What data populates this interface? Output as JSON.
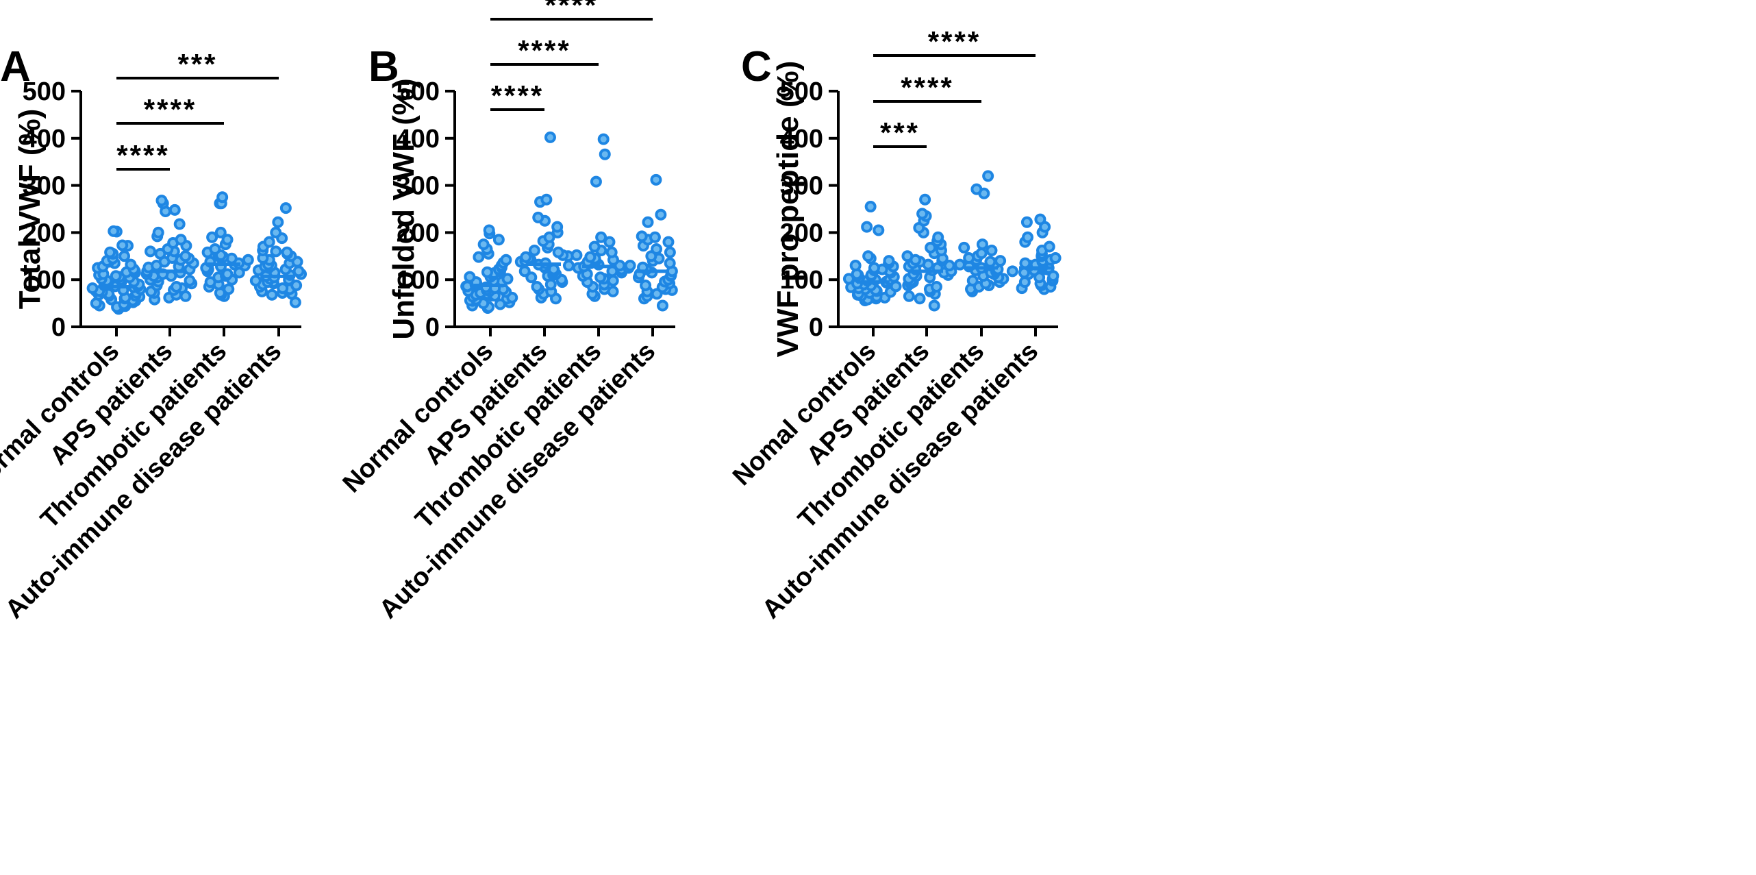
{
  "colors": {
    "point_fill": "#6ab8f0",
    "point_stroke": "#1e86e3",
    "mean_line": "#1e86e3",
    "axis": "#000000"
  },
  "chart_data": [
    {
      "type": "scatter",
      "panel": "A",
      "ylabel": "Total VWF (%)",
      "ylim": [
        0,
        500
      ],
      "yticks": [
        0,
        100,
        200,
        300,
        400,
        500
      ],
      "ytick_labels": [
        "0",
        "100",
        "200",
        "300",
        "400",
        "500"
      ],
      "categories": [
        "Normal controls",
        "APS patients",
        "Thrombotic patients",
        "Auto-immune disease patients"
      ],
      "means": [
        85,
        118,
        133,
        107
      ],
      "series": [
        {
          "name": "Normal controls",
          "values": [
            202,
            203,
            172,
            173,
            155,
            158,
            150,
            145,
            140,
            138,
            135,
            132,
            128,
            125,
            122,
            118,
            115,
            112,
            110,
            108,
            105,
            102,
            100,
            98,
            96,
            94,
            92,
            90,
            88,
            86,
            84,
            82,
            80,
            78,
            76,
            74,
            72,
            70,
            68,
            66,
            64,
            62,
            60,
            58,
            55,
            52,
            50,
            48,
            45,
            42,
            40,
            38,
            44,
            56,
            66,
            76,
            86,
            96,
            106,
            116
          ]
        },
        {
          "name": "APS patients",
          "values": [
            268,
            262,
            248,
            245,
            218,
            200,
            192,
            185,
            178,
            172,
            165,
            160,
            155,
            150,
            146,
            142,
            138,
            135,
            130,
            126,
            122,
            118,
            115,
            112,
            108,
            105,
            100,
            96,
            92,
            88,
            85,
            82,
            78,
            75,
            72,
            68,
            65,
            62,
            58,
            112,
            128,
            145,
            160,
            98,
            108
          ]
        },
        {
          "name": "Thrombotic patients",
          "values": [
            275,
            262,
            262,
            200,
            190,
            185,
            175,
            165,
            158,
            152,
            148,
            145,
            142,
            138,
            135,
            132,
            128,
            125,
            122,
            118,
            115,
            112,
            108,
            105,
            100,
            95,
            90,
            85,
            80,
            72,
            68,
            65,
            150,
            130
          ]
        },
        {
          "name": "Auto-immune disease patients",
          "values": [
            252,
            222,
            200,
            188,
            180,
            170,
            162,
            160,
            158,
            155,
            150,
            146,
            142,
            138,
            135,
            132,
            128,
            125,
            122,
            118,
            115,
            112,
            108,
            105,
            102,
            100,
            98,
            95,
            92,
            90,
            88,
            85,
            82,
            80,
            78,
            75,
            72,
            70,
            68,
            52,
            110,
            120,
            130,
            95
          ]
        }
      ],
      "significance": [
        {
          "from": 0,
          "to": 1,
          "label": "****"
        },
        {
          "from": 0,
          "to": 2,
          "label": "****"
        },
        {
          "from": 0,
          "to": 3,
          "label": "***"
        }
      ]
    },
    {
      "type": "scatter",
      "panel": "B",
      "ylabel": "Unfolded VWF (%)",
      "ylim": [
        0,
        500
      ],
      "yticks": [
        0,
        100,
        200,
        300,
        400,
        500
      ],
      "ytick_labels": [
        "0",
        "100",
        "200",
        "300",
        "400",
        "500"
      ],
      "categories": [
        "Normal controls",
        "APS patients",
        "Thrombotic patients",
        "Auto-immune disease patients"
      ],
      "means": [
        88,
        133,
        128,
        118
      ],
      "series": [
        {
          "name": "Normal controls",
          "values": [
            205,
            198,
            185,
            175,
            165,
            155,
            148,
            142,
            136,
            130,
            126,
            122,
            118,
            114,
            110,
            106,
            102,
            98,
            95,
            92,
            90,
            88,
            86,
            84,
            82,
            80,
            78,
            76,
            74,
            72,
            70,
            68,
            66,
            64,
            62,
            60,
            58,
            55,
            52,
            50,
            48,
            45,
            42,
            40,
            56,
            66,
            76,
            86,
            96,
            106,
            116
          ]
        },
        {
          "name": "APS patients",
          "values": [
            402,
            270,
            265,
            232,
            225,
            212,
            200,
            190,
            182,
            175,
            168,
            162,
            158,
            152,
            148,
            145,
            142,
            138,
            135,
            132,
            128,
            125,
            122,
            118,
            115,
            112,
            108,
            105,
            100,
            95,
            90,
            85,
            80,
            75,
            70,
            62,
            60,
            110,
            120,
            130,
            140,
            150
          ]
        },
        {
          "name": "Thrombotic patients",
          "values": [
            398,
            366,
            308,
            190,
            180,
            170,
            162,
            158,
            152,
            148,
            145,
            142,
            138,
            135,
            132,
            128,
            125,
            122,
            118,
            115,
            112,
            108,
            105,
            102,
            98,
            95,
            90,
            85,
            80,
            75,
            70,
            65,
            120,
            130,
            140
          ]
        },
        {
          "name": "Auto-immune disease patients",
          "values": [
            312,
            238,
            222,
            192,
            190,
            185,
            180,
            172,
            165,
            158,
            150,
            145,
            140,
            135,
            130,
            126,
            122,
            118,
            115,
            112,
            108,
            105,
            100,
            96,
            92,
            88,
            84,
            80,
            78,
            75,
            70,
            65,
            60,
            45,
            110,
            125
          ]
        }
      ],
      "significance": [
        {
          "from": 0,
          "to": 1,
          "label": "****"
        },
        {
          "from": 0,
          "to": 2,
          "label": "****"
        },
        {
          "from": 0,
          "to": 3,
          "label": "****"
        }
      ]
    },
    {
      "type": "scatter",
      "panel": "C",
      "ylabel": "VWF pro-peptide (%)",
      "ylim": [
        0,
        500
      ],
      "yticks": [
        0,
        100,
        200,
        300,
        400,
        500
      ],
      "ytick_labels": [
        "0",
        "100",
        "200",
        "300",
        "400",
        "500"
      ],
      "categories": [
        "Nomal controls",
        "APS patients",
        "Thrombotic patients",
        "Auto-immune disease patients"
      ],
      "means": [
        95,
        118,
        125,
        125
      ],
      "series": [
        {
          "name": "Nomal controls",
          "values": [
            255,
            212,
            205,
            150,
            145,
            140,
            135,
            130,
            128,
            125,
            122,
            118,
            115,
            112,
            110,
            108,
            106,
            104,
            102,
            100,
            98,
            96,
            94,
            92,
            90,
            88,
            86,
            84,
            82,
            80,
            78,
            76,
            74,
            72,
            70,
            68,
            66,
            64,
            62,
            60,
            58,
            56,
            100,
            110,
            120
          ]
        },
        {
          "name": "APS patients",
          "values": [
            270,
            240,
            235,
            225,
            210,
            200,
            190,
            182,
            175,
            168,
            162,
            156,
            150,
            145,
            142,
            138,
            135,
            132,
            128,
            125,
            122,
            118,
            115,
            112,
            108,
            105,
            102,
            98,
            95,
            92,
            88,
            85,
            80,
            75,
            70,
            65,
            60,
            45,
            110,
            120,
            130,
            140
          ]
        },
        {
          "name": "Thrombotic patients",
          "values": [
            320,
            292,
            283,
            175,
            168,
            162,
            156,
            150,
            146,
            142,
            138,
            135,
            132,
            128,
            125,
            122,
            118,
            115,
            112,
            108,
            105,
            102,
            98,
            95,
            92,
            88,
            85,
            80,
            75,
            120,
            130,
            140
          ]
        },
        {
          "name": "Auto-immune disease patients",
          "values": [
            228,
            222,
            212,
            200,
            190,
            180,
            170,
            162,
            155,
            150,
            146,
            142,
            138,
            135,
            132,
            128,
            125,
            122,
            118,
            115,
            112,
            108,
            105,
            102,
            98,
            95,
            92,
            88,
            85,
            82,
            80,
            120,
            130,
            140
          ]
        }
      ],
      "significance": [
        {
          "from": 0,
          "to": 1,
          "label": "***"
        },
        {
          "from": 0,
          "to": 2,
          "label": "****"
        },
        {
          "from": 0,
          "to": 3,
          "label": "****"
        }
      ]
    }
  ]
}
